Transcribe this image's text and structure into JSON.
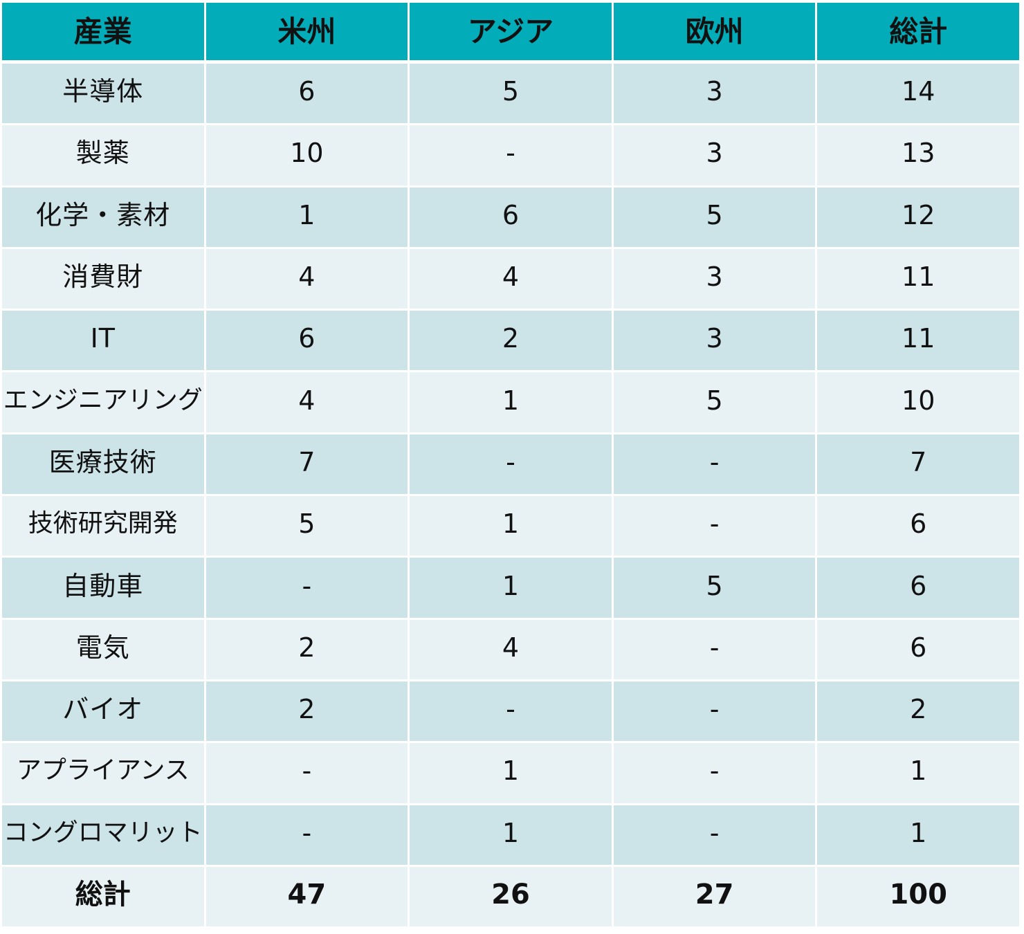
{
  "table": {
    "headers": [
      "産業",
      "米州",
      "アジア",
      "欧州",
      "総計"
    ],
    "rows": [
      {
        "industry": "半導体",
        "americas": "6",
        "asia": "5",
        "europe": "3",
        "total": "14"
      },
      {
        "industry": "製薬",
        "americas": "10",
        "asia": "-",
        "europe": "3",
        "total": "13"
      },
      {
        "industry": "化学・素材",
        "americas": "1",
        "asia": "6",
        "europe": "5",
        "total": "12"
      },
      {
        "industry": "消費財",
        "americas": "4",
        "asia": "4",
        "europe": "3",
        "total": "11"
      },
      {
        "industry": "IT",
        "americas": "6",
        "asia": "2",
        "europe": "3",
        "total": "11"
      },
      {
        "industry": "エンジニアリング",
        "americas": "4",
        "asia": "1",
        "europe": "5",
        "total": "10"
      },
      {
        "industry": "医療技術",
        "americas": "7",
        "asia": "-",
        "europe": "-",
        "total": "7"
      },
      {
        "industry": "技術研究開発",
        "americas": "5",
        "asia": "1",
        "europe": "-",
        "total": "6"
      },
      {
        "industry": "自動車",
        "americas": "-",
        "asia": "1",
        "europe": "5",
        "total": "6"
      },
      {
        "industry": "電気",
        "americas": "2",
        "asia": "4",
        "europe": "-",
        "total": "6"
      },
      {
        "industry": "バイオ",
        "americas": "2",
        "asia": "-",
        "europe": "-",
        "total": "2"
      },
      {
        "industry": "アプライアンス",
        "americas": "-",
        "asia": "1",
        "europe": "-",
        "total": "1"
      },
      {
        "industry": "コングロマリット",
        "americas": "-",
        "asia": "1",
        "europe": "-",
        "total": "1"
      }
    ],
    "total_row": {
      "industry": "総計",
      "americas": "47",
      "asia": "26",
      "europe": "27",
      "total": "100"
    }
  },
  "colors": {
    "header_bg": "#02adb9",
    "row_odd_bg": "#cce3e7",
    "row_even_bg": "#e8f1f3",
    "text": "#111111"
  }
}
